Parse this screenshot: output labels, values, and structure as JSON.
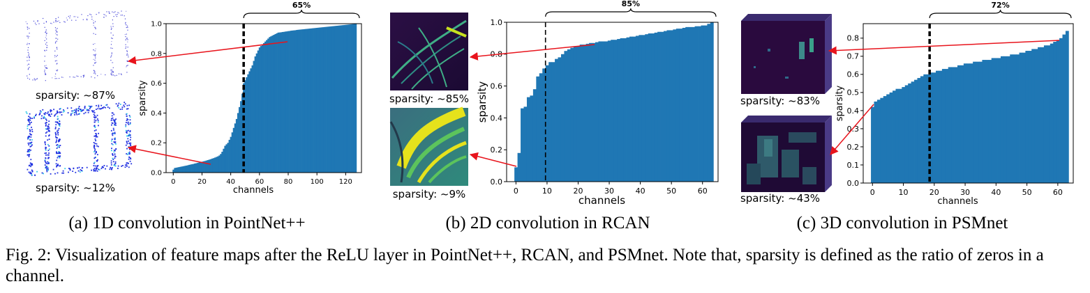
{
  "colors": {
    "bar": "#1f77b4",
    "arrow": "#e8141c",
    "axis": "#000000"
  },
  "panels": [
    {
      "caption": "(a) 1D convolution in PointNet++",
      "thumb_labels": [
        "sparsity: ~87%",
        "sparsity: ~12%"
      ],
      "thumb_icons": [
        "point-cloud-sparse-icon",
        "point-cloud-dense-icon"
      ]
    },
    {
      "caption": "(b) 2D convolution in RCAN",
      "thumb_labels": [
        "sparsity: ~85%",
        "sparsity: ~9%"
      ],
      "thumb_icons": [
        "butterfly-feature-map-sparse-icon",
        "butterfly-feature-map-dense-icon"
      ]
    },
    {
      "caption": "(c) 3D convolution in PSMnet",
      "thumb_labels": [
        "sparsity: ~83%",
        "sparsity: ~43%"
      ],
      "thumb_icons": [
        "cost-volume-sparse-icon",
        "cost-volume-dense-icon"
      ]
    }
  ],
  "figure_caption": "Fig. 2: Visualization of feature maps after the ReLU layer in PointNet++, RCAN, and PSMnet. Note that, sparsity is defined as the ratio of zeros in a channel.",
  "chart_data": [
    {
      "type": "bar",
      "xlabel": "channels",
      "ylabel": "sparsity",
      "xlim": [
        -5,
        131
      ],
      "ylim": [
        0,
        1.0
      ],
      "xticks": [
        0,
        20,
        40,
        60,
        80,
        100,
        120
      ],
      "xtick_labels": [
        "0",
        "20",
        "40",
        "60",
        "80",
        "100",
        "120"
      ],
      "yticks": [
        0,
        0.2,
        0.4,
        0.6,
        0.8,
        1.0
      ],
      "ytick_labels": [
        "0.0",
        "0.2",
        "0.4",
        "0.6",
        "0.8",
        "1.0"
      ],
      "brace_label": "65%",
      "threshold_channel": 49,
      "x": [
        0,
        1,
        2,
        3,
        4,
        5,
        6,
        7,
        8,
        9,
        10,
        11,
        12,
        13,
        14,
        15,
        16,
        17,
        18,
        19,
        20,
        21,
        22,
        23,
        24,
        25,
        26,
        27,
        28,
        29,
        30,
        31,
        32,
        33,
        34,
        35,
        36,
        37,
        38,
        39,
        40,
        41,
        42,
        43,
        44,
        45,
        46,
        47,
        48,
        49,
        50,
        51,
        52,
        53,
        54,
        55,
        56,
        57,
        58,
        59,
        60,
        61,
        62,
        63,
        64,
        65,
        66,
        67,
        68,
        69,
        70,
        71,
        72,
        73,
        74,
        75,
        76,
        77,
        78,
        79,
        80,
        81,
        82,
        83,
        84,
        85,
        86,
        87,
        88,
        89,
        90,
        91,
        92,
        93,
        94,
        95,
        96,
        97,
        98,
        99,
        100,
        101,
        102,
        103,
        104,
        105,
        106,
        107,
        108,
        109,
        110,
        111,
        112,
        113,
        114,
        115,
        116,
        117,
        118,
        119,
        120,
        121,
        122,
        123,
        124,
        125,
        126,
        127
      ],
      "values": [
        0.02,
        0.031,
        0.033,
        0.035,
        0.037,
        0.039,
        0.041,
        0.043,
        0.045,
        0.047,
        0.049,
        0.052,
        0.054,
        0.056,
        0.058,
        0.061,
        0.063,
        0.066,
        0.068,
        0.071,
        0.073,
        0.076,
        0.078,
        0.081,
        0.084,
        0.087,
        0.09,
        0.094,
        0.097,
        0.101,
        0.105,
        0.109,
        0.115,
        0.125,
        0.14,
        0.16,
        0.18,
        0.19,
        0.2,
        0.22,
        0.24,
        0.27,
        0.3,
        0.33,
        0.36,
        0.4,
        0.44,
        0.48,
        0.53,
        0.6,
        0.62,
        0.64,
        0.66,
        0.68,
        0.7,
        0.72,
        0.75,
        0.78,
        0.8,
        0.82,
        0.84,
        0.85,
        0.86,
        0.87,
        0.88,
        0.89,
        0.9,
        0.91,
        0.915,
        0.92,
        0.925,
        0.93,
        0.935,
        0.94,
        0.941,
        0.942,
        0.944,
        0.945,
        0.947,
        0.948,
        0.95,
        0.951,
        0.953,
        0.954,
        0.955,
        0.956,
        0.958,
        0.959,
        0.96,
        0.961,
        0.962,
        0.963,
        0.964,
        0.965,
        0.966,
        0.967,
        0.968,
        0.969,
        0.97,
        0.971,
        0.972,
        0.973,
        0.974,
        0.975,
        0.976,
        0.977,
        0.978,
        0.979,
        0.98,
        0.981,
        0.982,
        0.983,
        0.984,
        0.985,
        0.986,
        0.987,
        0.988,
        0.989,
        0.99,
        0.991,
        0.992,
        0.993,
        0.994,
        0.995,
        0.996,
        0.997,
        0.998,
        1.0
      ]
    },
    {
      "type": "bar",
      "xlabel": "channels",
      "ylabel": "sparsity",
      "xlim": [
        -3,
        65
      ],
      "ylim": [
        0,
        1.0
      ],
      "xticks": [
        0,
        10,
        20,
        30,
        40,
        50,
        60
      ],
      "xtick_labels": [
        "0",
        "10",
        "20",
        "30",
        "40",
        "50",
        "60"
      ],
      "yticks": [
        0,
        0.2,
        0.4,
        0.6,
        0.8,
        1.0
      ],
      "ytick_labels": [
        "0.0",
        "0.2",
        "0.4",
        "0.6",
        "0.8",
        "1.0"
      ],
      "brace_label": "85%",
      "threshold_channel": 9.5,
      "x": [
        0,
        1,
        2,
        3,
        4,
        5,
        6,
        7,
        8,
        9,
        10,
        11,
        12,
        13,
        14,
        15,
        16,
        17,
        18,
        19,
        20,
        21,
        22,
        23,
        24,
        25,
        26,
        27,
        28,
        29,
        30,
        31,
        32,
        33,
        34,
        35,
        36,
        37,
        38,
        39,
        40,
        41,
        42,
        43,
        44,
        45,
        46,
        47,
        48,
        49,
        50,
        51,
        52,
        53,
        54,
        55,
        56,
        57,
        58,
        59,
        60,
        61,
        62,
        63
      ],
      "values": [
        0.09,
        0.18,
        0.46,
        0.47,
        0.53,
        0.54,
        0.58,
        0.66,
        0.68,
        0.71,
        0.73,
        0.75,
        0.75,
        0.77,
        0.78,
        0.8,
        0.82,
        0.83,
        0.84,
        0.85,
        0.85,
        0.86,
        0.86,
        0.865,
        0.87,
        0.87,
        0.875,
        0.88,
        0.88,
        0.88,
        0.885,
        0.89,
        0.89,
        0.895,
        0.9,
        0.9,
        0.905,
        0.91,
        0.91,
        0.915,
        0.92,
        0.92,
        0.925,
        0.93,
        0.93,
        0.935,
        0.94,
        0.94,
        0.945,
        0.95,
        0.95,
        0.955,
        0.96,
        0.96,
        0.965,
        0.97,
        0.97,
        0.97,
        0.975,
        0.975,
        0.98,
        0.98,
        0.99,
        1.0
      ]
    },
    {
      "type": "bar",
      "xlabel": "channels",
      "ylabel": "sparsity",
      "xlim": [
        -3,
        65
      ],
      "ylim": [
        0,
        0.88
      ],
      "xticks": [
        0,
        10,
        20,
        30,
        40,
        50,
        60
      ],
      "xtick_labels": [
        "0",
        "10",
        "20",
        "30",
        "40",
        "50",
        "60"
      ],
      "yticks": [
        0,
        0.1,
        0.2,
        0.3,
        0.4,
        0.5,
        0.6,
        0.7,
        0.8
      ],
      "ytick_labels": [
        "0.0",
        "0.1",
        "0.2",
        "0.3",
        "0.4",
        "0.5",
        "0.6",
        "0.7",
        "0.8"
      ],
      "brace_label": "72%",
      "threshold_channel": 18.5,
      "x": [
        0,
        1,
        2,
        3,
        4,
        5,
        6,
        7,
        8,
        9,
        10,
        11,
        12,
        13,
        14,
        15,
        16,
        17,
        18,
        19,
        20,
        21,
        22,
        23,
        24,
        25,
        26,
        27,
        28,
        29,
        30,
        31,
        32,
        33,
        34,
        35,
        36,
        37,
        38,
        39,
        40,
        41,
        42,
        43,
        44,
        45,
        46,
        47,
        48,
        49,
        50,
        51,
        52,
        53,
        54,
        55,
        56,
        57,
        58,
        59,
        60,
        61,
        62,
        63
      ],
      "values": [
        0.42,
        0.45,
        0.46,
        0.47,
        0.48,
        0.49,
        0.5,
        0.51,
        0.52,
        0.52,
        0.53,
        0.54,
        0.55,
        0.56,
        0.57,
        0.58,
        0.59,
        0.6,
        0.6,
        0.61,
        0.61,
        0.62,
        0.62,
        0.63,
        0.63,
        0.64,
        0.64,
        0.64,
        0.65,
        0.65,
        0.66,
        0.66,
        0.66,
        0.67,
        0.67,
        0.67,
        0.68,
        0.68,
        0.68,
        0.69,
        0.69,
        0.69,
        0.7,
        0.7,
        0.7,
        0.71,
        0.71,
        0.71,
        0.72,
        0.72,
        0.73,
        0.73,
        0.74,
        0.74,
        0.75,
        0.75,
        0.76,
        0.76,
        0.77,
        0.78,
        0.79,
        0.8,
        0.82,
        0.84
      ]
    }
  ]
}
